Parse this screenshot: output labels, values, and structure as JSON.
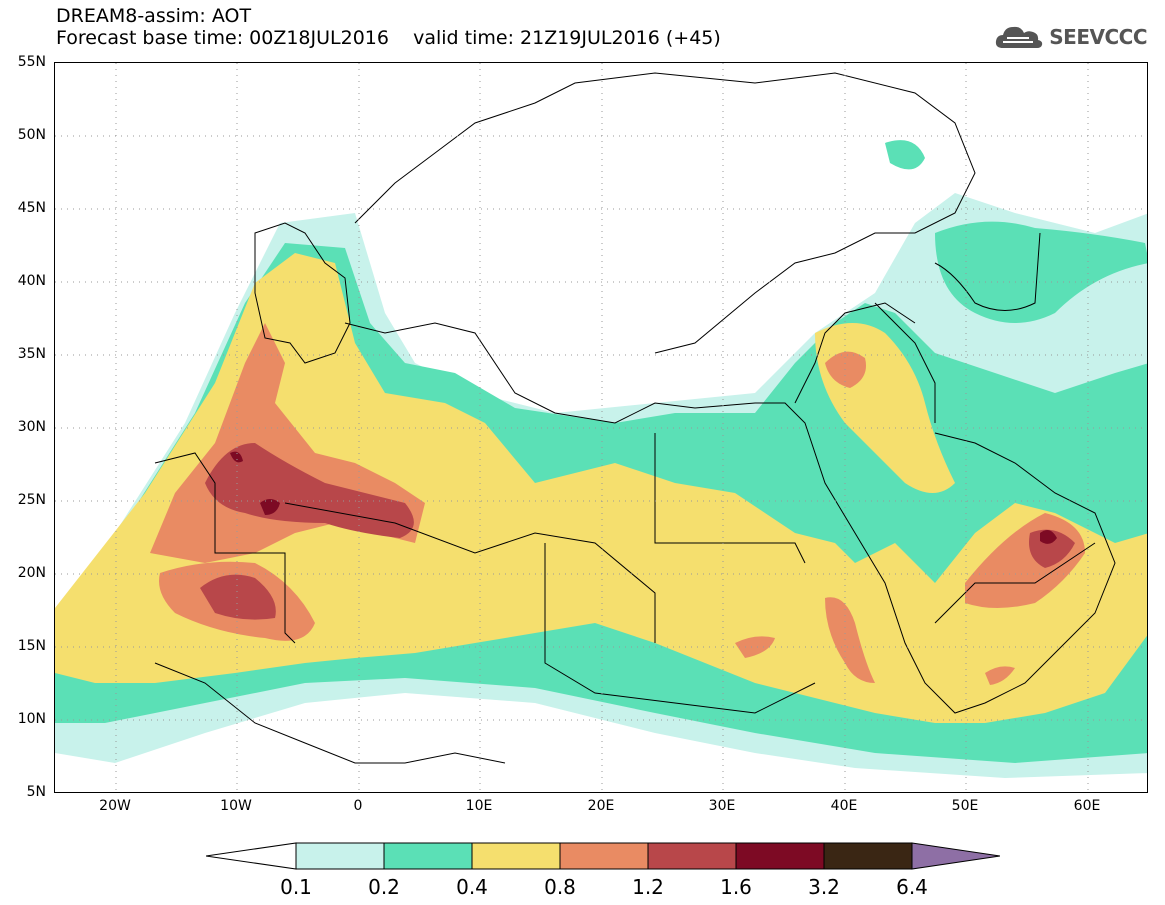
{
  "header": {
    "title_line1": "DREAM8-assim: AOT",
    "title_line2": "Forecast base time: 00Z18JUL2016    valid time: 21Z19JUL2016 (+45)",
    "brand": "SEEVCCC",
    "brand_icon": "cloud-icon"
  },
  "map": {
    "lat_ticks": [
      "55N",
      "50N",
      "45N",
      "40N",
      "35N",
      "30N",
      "25N",
      "20N",
      "15N",
      "10N",
      "5N"
    ],
    "lon_ticks": [
      "20W",
      "10W",
      "0",
      "10E",
      "20E",
      "30E",
      "40E",
      "50E",
      "60E"
    ]
  },
  "legend": {
    "labels": [
      "0.1",
      "0.2",
      "0.4",
      "0.8",
      "1.2",
      "1.6",
      "3.2",
      "6.4"
    ],
    "colors": [
      "#ffffff",
      "#c8f2eb",
      "#5be0b6",
      "#f5df6e",
      "#e98b63",
      "#b8474a",
      "#7d0a24",
      "#3a2614",
      "#8e6fa5"
    ]
  }
}
